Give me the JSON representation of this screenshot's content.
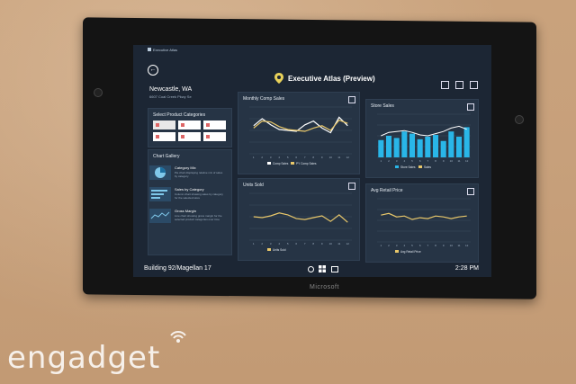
{
  "app": {
    "small_title": "Executive Atlas",
    "title": "Executive Atlas (Preview)"
  },
  "location": {
    "city": "Newcastle, WA",
    "address": "6607 Coal Creek Pkwy Se"
  },
  "categories_panel": {
    "title": "Select Product Categories"
  },
  "gallery": {
    "title": "Chart Gallery",
    "items": [
      {
        "title": "Category Mix",
        "desc": "Pie chart displaying relative mix of sales by category"
      },
      {
        "title": "Sales by Category",
        "desc": "Column chart showing sales by category for the selected store"
      },
      {
        "title": "Gross Margin",
        "desc": "Line chart showing gross margin for the selected product categories over time"
      }
    ]
  },
  "status_bar": {
    "location": "Building 92/Magellan 17",
    "time": "2:28 PM"
  },
  "device_brand": "Microsoft",
  "watermark": "engadget",
  "colors": {
    "accent_blue": "#29b6e8",
    "accent_yellow": "#e8c76a",
    "line_white": "#ffffff"
  },
  "chart_data": [
    {
      "type": "line",
      "title": "Monthly Comp Sales",
      "x": [
        1,
        2,
        3,
        4,
        5,
        6,
        7,
        8,
        9,
        10,
        11,
        12
      ],
      "series": [
        {
          "name": "Comp Sales",
          "values": [
            60,
            75,
            62,
            52,
            50,
            48,
            62,
            70,
            55,
            45,
            78,
            60
          ]
        },
        {
          "name": "PY Comp Sales",
          "values": [
            55,
            70,
            68,
            58,
            52,
            50,
            48,
            55,
            60,
            50,
            72,
            65
          ]
        }
      ]
    },
    {
      "type": "bar",
      "title": "Store Sales",
      "categories": [
        1,
        2,
        3,
        4,
        5,
        6,
        7,
        8,
        9,
        10,
        11,
        12
      ],
      "series": [
        {
          "name": "Store Sales",
          "values": [
            40,
            50,
            45,
            60,
            55,
            42,
            48,
            52,
            38,
            60,
            48,
            70
          ]
        },
        {
          "name": "Sales",
          "values": [
            50,
            58,
            60,
            62,
            58,
            52,
            50,
            55,
            60,
            68,
            72,
            65
          ]
        }
      ]
    },
    {
      "type": "line",
      "title": "Units Sold",
      "x": [
        1,
        2,
        3,
        4,
        5,
        6,
        7,
        8,
        9,
        10,
        11,
        12
      ],
      "series": [
        {
          "name": "Units Sold",
          "values": [
            50,
            48,
            52,
            58,
            54,
            46,
            44,
            48,
            52,
            40,
            54,
            38
          ]
        }
      ]
    },
    {
      "type": "line",
      "title": "Avg Retail Price",
      "x": [
        1,
        2,
        3,
        4,
        5,
        6,
        7,
        8,
        9,
        10,
        11,
        12
      ],
      "series": [
        {
          "name": "Avg Retail Price",
          "values": [
            62,
            66,
            58,
            60,
            52,
            56,
            54,
            60,
            58,
            54,
            58,
            60
          ]
        }
      ]
    }
  ]
}
